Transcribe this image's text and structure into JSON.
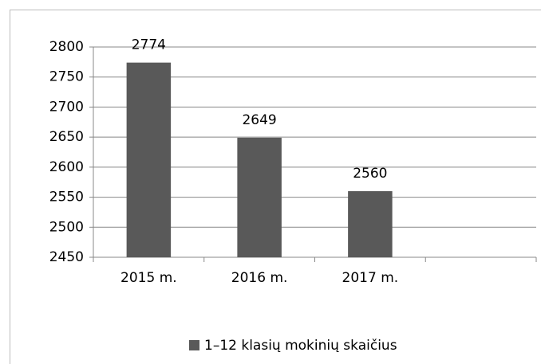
{
  "chart_data": {
    "type": "bar",
    "categories": [
      "2015 m.",
      "2016 m.",
      "2017 m.",
      null
    ],
    "series": [
      {
        "name": "1–12 klasių mokinių skaičius",
        "color": "#595959",
        "values": [
          2774,
          2649,
          2560,
          null
        ]
      }
    ],
    "ylim": [
      2450,
      2800
    ],
    "yticks": [
      2450,
      2500,
      2550,
      2600,
      2650,
      2700,
      2750,
      2800
    ],
    "grid": true,
    "legend": "bottom"
  }
}
